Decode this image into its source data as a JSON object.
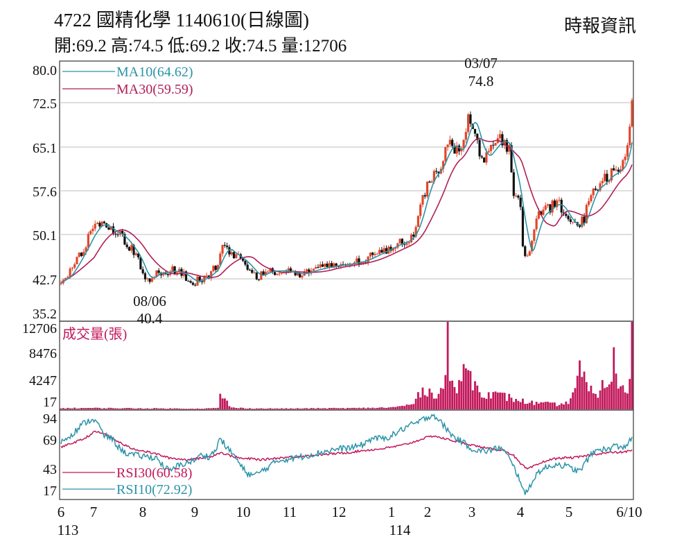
{
  "header": {
    "title": "4722  國精化學 1140610(日線圖)",
    "ohlc": "開:69.2 高:74.5 低:69.2 收:74.5 量:12706",
    "source": "時報資訊"
  },
  "colors": {
    "up": "#e0472a",
    "down": "#111111",
    "ma10": "#2a93a8",
    "ma30": "#b01e56",
    "volume": "#c2185b",
    "rsi30": "#c2185b",
    "rsi10": "#2a93a8",
    "grid": "#bdbdbd",
    "border": "#444444"
  },
  "chart_data": {
    "type": "candlestick",
    "price_axis": {
      "ticks": [
        "80.0",
        "72.5",
        "65.1",
        "57.6",
        "50.1",
        "42.7",
        "35.2"
      ],
      "range": [
        35.2,
        80.0
      ]
    },
    "volume_axis": {
      "ticks": [
        "12706",
        "8476",
        "4247",
        "17"
      ],
      "range": [
        17,
        12706
      ],
      "label": "成交量(張)"
    },
    "rsi_axis": {
      "ticks": [
        "94",
        "69",
        "43",
        "17"
      ],
      "range": [
        17,
        94
      ]
    },
    "x_axis": {
      "month_labels": [
        "6",
        "7",
        "8",
        "9",
        "10",
        "11",
        "12",
        "1",
        "2",
        "3",
        "4",
        "5",
        "6/10"
      ],
      "year_labels": [
        "113",
        "114"
      ]
    },
    "legend": {
      "ma10": "MA10(64.62)",
      "ma30": "MA30(59.59)",
      "rsi30": "RSI30(60.58)",
      "rsi10": "RSI10(72.92)"
    },
    "annotations": {
      "high_date": "03/07",
      "high_value": "74.8",
      "low_date": "08/06",
      "low_value": "40.4"
    },
    "price_keypoints": [
      [
        0,
        42.0
      ],
      [
        8,
        44.0
      ],
      [
        18,
        47.5
      ],
      [
        28,
        51.5
      ],
      [
        35,
        52.8
      ],
      [
        42,
        51.5
      ],
      [
        52,
        50.5
      ],
      [
        62,
        48.0
      ],
      [
        68,
        46.0
      ],
      [
        75,
        42.0
      ],
      [
        80,
        43.5
      ],
      [
        88,
        43.8
      ],
      [
        98,
        44.2
      ],
      [
        108,
        43.5
      ],
      [
        116,
        42.0
      ],
      [
        124,
        42.8
      ],
      [
        130,
        43.5
      ],
      [
        137,
        45.0
      ],
      [
        142,
        48.8
      ],
      [
        148,
        47.5
      ],
      [
        156,
        46.5
      ],
      [
        164,
        45.0
      ],
      [
        172,
        43.0
      ],
      [
        180,
        44.0
      ],
      [
        190,
        44.2
      ],
      [
        200,
        44.0
      ],
      [
        210,
        43.5
      ],
      [
        220,
        44.2
      ],
      [
        232,
        44.8
      ],
      [
        244,
        45.2
      ],
      [
        256,
        45.5
      ],
      [
        266,
        46.0
      ],
      [
        276,
        47.0
      ],
      [
        286,
        48.0
      ],
      [
        296,
        49.0
      ],
      [
        304,
        49.5
      ],
      [
        310,
        51.0
      ],
      [
        316,
        55.0
      ],
      [
        322,
        60.0
      ],
      [
        328,
        61.5
      ],
      [
        334,
        63.0
      ],
      [
        340,
        67.0
      ],
      [
        346,
        66.0
      ],
      [
        352,
        65.0
      ],
      [
        358,
        72.5
      ],
      [
        364,
        69.0
      ],
      [
        370,
        64.0
      ],
      [
        376,
        65.0
      ],
      [
        382,
        67.0
      ],
      [
        388,
        67.5
      ],
      [
        394,
        66.0
      ],
      [
        398,
        58.5
      ],
      [
        403,
        57.6
      ],
      [
        407,
        46.0
      ],
      [
        412,
        47.5
      ],
      [
        418,
        53.5
      ],
      [
        424,
        54.5
      ],
      [
        430,
        55.5
      ],
      [
        436,
        56.5
      ],
      [
        442,
        54.5
      ],
      [
        448,
        52.5
      ],
      [
        454,
        52.0
      ],
      [
        460,
        53.5
      ],
      [
        466,
        58.5
      ],
      [
        472,
        59.0
      ],
      [
        478,
        60.5
      ],
      [
        484,
        61.5
      ],
      [
        490,
        62.0
      ],
      [
        496,
        64.0
      ],
      [
        500,
        69.5
      ],
      [
        502,
        74.5
      ]
    ],
    "volume_keypoints": [
      [
        0,
        180
      ],
      [
        20,
        220
      ],
      [
        40,
        200
      ],
      [
        60,
        180
      ],
      [
        80,
        160
      ],
      [
        100,
        140
      ],
      [
        120,
        120
      ],
      [
        138,
        200
      ],
      [
        140,
        2600
      ],
      [
        142,
        1800
      ],
      [
        146,
        1100
      ],
      [
        150,
        260
      ],
      [
        170,
        150
      ],
      [
        200,
        140
      ],
      [
        230,
        180
      ],
      [
        260,
        200
      ],
      [
        290,
        300
      ],
      [
        300,
        500
      ],
      [
        306,
        700
      ],
      [
        312,
        1200
      ],
      [
        316,
        2800
      ],
      [
        320,
        3400
      ],
      [
        326,
        2200
      ],
      [
        330,
        2600
      ],
      [
        334,
        3200
      ],
      [
        338,
        4200
      ],
      [
        340,
        12706
      ],
      [
        342,
        5200
      ],
      [
        346,
        2500
      ],
      [
        352,
        4500
      ],
      [
        356,
        6800
      ],
      [
        358,
        8200
      ],
      [
        360,
        5600
      ],
      [
        364,
        3500
      ],
      [
        370,
        2800
      ],
      [
        380,
        2200
      ],
      [
        390,
        2000
      ],
      [
        400,
        1500
      ],
      [
        410,
        1100
      ],
      [
        420,
        900
      ],
      [
        430,
        850
      ],
      [
        440,
        700
      ],
      [
        446,
        1200
      ],
      [
        450,
        2500
      ],
      [
        454,
        4600
      ],
      [
        456,
        5800
      ],
      [
        460,
        4400
      ],
      [
        464,
        2800
      ],
      [
        470,
        2400
      ],
      [
        476,
        3400
      ],
      [
        480,
        4300
      ],
      [
        484,
        5200
      ],
      [
        486,
        7400
      ],
      [
        490,
        3600
      ],
      [
        494,
        2800
      ],
      [
        498,
        3300
      ],
      [
        500,
        6200
      ],
      [
        502,
        12706
      ]
    ],
    "rsi10_keypoints": [
      [
        0,
        68
      ],
      [
        10,
        76
      ],
      [
        20,
        86
      ],
      [
        28,
        90
      ],
      [
        32,
        86
      ],
      [
        38,
        74
      ],
      [
        44,
        72
      ],
      [
        50,
        64
      ],
      [
        56,
        58
      ],
      [
        62,
        56
      ],
      [
        68,
        55
      ],
      [
        76,
        54
      ],
      [
        84,
        53
      ],
      [
        90,
        45
      ],
      [
        96,
        40
      ],
      [
        102,
        45
      ],
      [
        110,
        48
      ],
      [
        118,
        51
      ],
      [
        124,
        56
      ],
      [
        130,
        54
      ],
      [
        136,
        60
      ],
      [
        140,
        72
      ],
      [
        146,
        62
      ],
      [
        152,
        56
      ],
      [
        158,
        45
      ],
      [
        164,
        38
      ],
      [
        170,
        36
      ],
      [
        176,
        40
      ],
      [
        182,
        44
      ],
      [
        190,
        50
      ],
      [
        200,
        52
      ],
      [
        212,
        54
      ],
      [
        224,
        57
      ],
      [
        236,
        60
      ],
      [
        248,
        62
      ],
      [
        258,
        63
      ],
      [
        266,
        66
      ],
      [
        274,
        72
      ],
      [
        284,
        71
      ],
      [
        292,
        75
      ],
      [
        300,
        80
      ],
      [
        306,
        84
      ],
      [
        310,
        85
      ],
      [
        316,
        88
      ],
      [
        322,
        92
      ],
      [
        328,
        94
      ],
      [
        332,
        89
      ],
      [
        338,
        82
      ],
      [
        344,
        74
      ],
      [
        350,
        70
      ],
      [
        356,
        66
      ],
      [
        362,
        61
      ],
      [
        370,
        59
      ],
      [
        378,
        60
      ],
      [
        386,
        63
      ],
      [
        392,
        56
      ],
      [
        398,
        44
      ],
      [
        404,
        31
      ],
      [
        408,
        17
      ],
      [
        414,
        30
      ],
      [
        420,
        40
      ],
      [
        428,
        44
      ],
      [
        436,
        47
      ],
      [
        444,
        45
      ],
      [
        450,
        42
      ],
      [
        456,
        40
      ],
      [
        462,
        50
      ],
      [
        468,
        58
      ],
      [
        474,
        62
      ],
      [
        480,
        60
      ],
      [
        486,
        65
      ],
      [
        492,
        62
      ],
      [
        498,
        66
      ],
      [
        502,
        72.9
      ]
    ],
    "rsi30_keypoints": [
      [
        0,
        63
      ],
      [
        10,
        67
      ],
      [
        20,
        71
      ],
      [
        30,
        78
      ],
      [
        38,
        76
      ],
      [
        46,
        71
      ],
      [
        54,
        66
      ],
      [
        62,
        62
      ],
      [
        70,
        60
      ],
      [
        78,
        58
      ],
      [
        86,
        56
      ],
      [
        94,
        53
      ],
      [
        102,
        52
      ],
      [
        110,
        51
      ],
      [
        118,
        52
      ],
      [
        126,
        53
      ],
      [
        134,
        55
      ],
      [
        140,
        58
      ],
      [
        146,
        56
      ],
      [
        152,
        54
      ],
      [
        160,
        52
      ],
      [
        168,
        52
      ],
      [
        176,
        51
      ],
      [
        184,
        52
      ],
      [
        194,
        53
      ],
      [
        206,
        54
      ],
      [
        218,
        55
      ],
      [
        230,
        56
      ],
      [
        242,
        57
      ],
      [
        254,
        58
      ],
      [
        266,
        60
      ],
      [
        278,
        61
      ],
      [
        290,
        63
      ],
      [
        300,
        65
      ],
      [
        310,
        68
      ],
      [
        320,
        72
      ],
      [
        328,
        74
      ],
      [
        334,
        72
      ],
      [
        342,
        70
      ],
      [
        350,
        68
      ],
      [
        358,
        66
      ],
      [
        366,
        64
      ],
      [
        374,
        62
      ],
      [
        382,
        61
      ],
      [
        390,
        60
      ],
      [
        398,
        55
      ],
      [
        404,
        47
      ],
      [
        410,
        42
      ],
      [
        418,
        46
      ],
      [
        426,
        50
      ],
      [
        434,
        52
      ],
      [
        442,
        53
      ],
      [
        450,
        53
      ],
      [
        458,
        54
      ],
      [
        466,
        56
      ],
      [
        474,
        57
      ],
      [
        482,
        58
      ],
      [
        490,
        58
      ],
      [
        498,
        59
      ],
      [
        502,
        60.58
      ]
    ]
  }
}
